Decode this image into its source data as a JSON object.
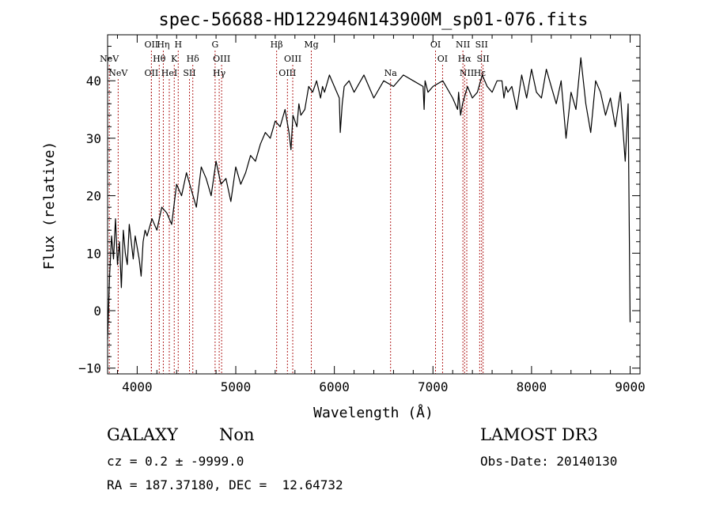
{
  "chart_data": {
    "type": "line",
    "title": "spec-56688-HD122946N143900M_sp01-076.fits",
    "xlabel": "Wavelength (Å)",
    "ylabel": "Flux (relative)",
    "xlim": [
      3700,
      9100
    ],
    "ylim": [
      -11,
      48
    ],
    "xticks": [
      4000,
      5000,
      6000,
      7000,
      8000,
      9000
    ],
    "yticks": [
      -10,
      0,
      10,
      20,
      30,
      40
    ],
    "grid": false,
    "series": [
      {
        "name": "spectrum",
        "x": [
          3700,
          3720,
          3740,
          3760,
          3780,
          3800,
          3820,
          3840,
          3860,
          3880,
          3900,
          3920,
          3940,
          3960,
          3980,
          4000,
          4020,
          4040,
          4060,
          4080,
          4100,
          4150,
          4200,
          4250,
          4300,
          4350,
          4400,
          4450,
          4500,
          4550,
          4600,
          4650,
          4700,
          4750,
          4800,
          4850,
          4900,
          4950,
          5000,
          5050,
          5100,
          5150,
          5200,
          5250,
          5300,
          5350,
          5400,
          5450,
          5500,
          5540,
          5560,
          5580,
          5600,
          5620,
          5640,
          5660,
          5700,
          5740,
          5780,
          5820,
          5860,
          5880,
          5900,
          5950,
          6000,
          6050,
          6060,
          6080,
          6100,
          6150,
          6200,
          6300,
          6400,
          6500,
          6600,
          6700,
          6800,
          6900,
          6910,
          6920,
          6950,
          7000,
          7100,
          7200,
          7250,
          7260,
          7280,
          7300,
          7350,
          7400,
          7450,
          7500,
          7550,
          7600,
          7650,
          7700,
          7720,
          7740,
          7760,
          7800,
          7850,
          7900,
          7950,
          8000,
          8050,
          8100,
          8150,
          8200,
          8250,
          8300,
          8350,
          8400,
          8450,
          8500,
          8550,
          8600,
          8650,
          8700,
          8750,
          8800,
          8850,
          8900,
          8950,
          8980,
          9000
        ],
        "y": [
          -5,
          6,
          13,
          9,
          16,
          8,
          12,
          4,
          14,
          10,
          8,
          15,
          12,
          9,
          13,
          11,
          9,
          6,
          12,
          14,
          13,
          16,
          14,
          18,
          17,
          15,
          22,
          20,
          24,
          21,
          18,
          25,
          23,
          20,
          26,
          22,
          23,
          19,
          25,
          22,
          24,
          27,
          26,
          29,
          31,
          30,
          33,
          32,
          35,
          31,
          28,
          34,
          33,
          32,
          36,
          34,
          35,
          39,
          38,
          40,
          37,
          39,
          38,
          41,
          39,
          37,
          31,
          36,
          39,
          40,
          38,
          41,
          37,
          40,
          39,
          41,
          40,
          39,
          35,
          40,
          38,
          39,
          40,
          37,
          35,
          38,
          34,
          36,
          39,
          37,
          38,
          41,
          39,
          38,
          40,
          40,
          37,
          39,
          38,
          39,
          35,
          41,
          37,
          42,
          38,
          37,
          42,
          39,
          36,
          40,
          30,
          38,
          35,
          44,
          36,
          31,
          40,
          38,
          34,
          37,
          32,
          38,
          26,
          36,
          -2
        ]
      }
    ],
    "spectral_lines": [
      {
        "label": "NeV",
        "x": 3426,
        "row": 2
      },
      {
        "label": "NeV",
        "x": 3346,
        "row": 1
      },
      {
        "label": "OII",
        "x": 3727,
        "row": 0
      },
      {
        "label": "OII",
        "x": 3727,
        "row": 2
      },
      {
        "label": "Hη",
        "x": 3835,
        "row": 0
      },
      {
        "label": "H",
        "x": 3970,
        "row": 0
      },
      {
        "label": "Hθ",
        "x": 3798,
        "row": 1
      },
      {
        "label": "K",
        "x": 3934,
        "row": 1
      },
      {
        "label": "Hδ",
        "x": 4102,
        "row": 1
      },
      {
        "label": "HeI",
        "x": 3889,
        "row": 2
      },
      {
        "label": "SII",
        "x": 4072,
        "row": 2
      },
      {
        "label": "G",
        "x": 4304,
        "row": 0
      },
      {
        "label": "OIII",
        "x": 4363,
        "row": 1
      },
      {
        "label": "Hγ",
        "x": 4341,
        "row": 2
      },
      {
        "label": "Hβ",
        "x": 4861,
        "row": 0
      },
      {
        "label": "Mg",
        "x": 5175,
        "row": 0
      },
      {
        "label": "OIII",
        "x": 5007,
        "row": 1
      },
      {
        "label": "OIII",
        "x": 4959,
        "row": 2
      },
      {
        "label": "Na",
        "x": 5893,
        "row": 2
      },
      {
        "label": "OI",
        "x": 6300,
        "row": 0
      },
      {
        "label": "NII",
        "x": 6548,
        "row": 0
      },
      {
        "label": "SII",
        "x": 6717,
        "row": 0
      },
      {
        "label": "OI",
        "x": 6364,
        "row": 1
      },
      {
        "label": "Hα",
        "x": 6563,
        "row": 1
      },
      {
        "label": "SII",
        "x": 6731,
        "row": 1
      },
      {
        "label": "NII",
        "x": 6583,
        "row": 2
      },
      {
        "label": "Hε",
        "x": 6700,
        "row": 2
      }
    ]
  },
  "info": {
    "object_class": "GALAXY",
    "subclass": "Non",
    "survey": "LAMOST DR3",
    "cz": "cz = 0.2 ± -9999.0",
    "obs_date": "Obs-Date: 20140130",
    "coords": "RA = 187.37180, DEC =  12.64732"
  }
}
